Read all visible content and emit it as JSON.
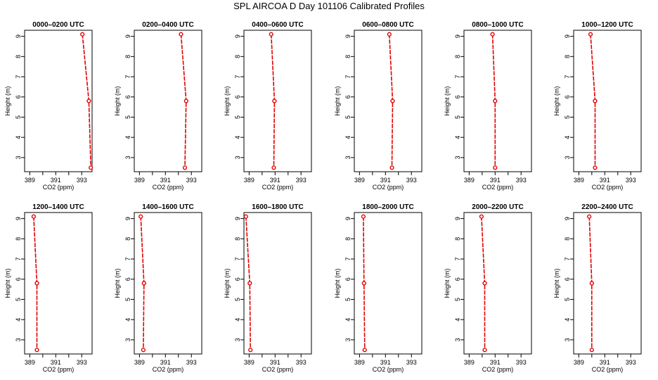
{
  "title": "SPL AIRCOA D  Day 101106  Calibrated Profiles",
  "style": {
    "line_color": "#e00000",
    "axis_color": "#000000"
  },
  "chart_data": [
    {
      "type": "line",
      "title": "0000–0200 UTC",
      "xlabel": "CO2 (ppm)",
      "ylabel": "Height (m)",
      "xlim": [
        388.6,
        393.8
      ],
      "ylim": [
        2.3,
        9.3
      ],
      "xticks": [
        389,
        391,
        393
      ],
      "yticks": [
        3,
        4,
        5,
        6,
        7,
        8,
        9
      ],
      "x": [
        393.05,
        393.55,
        393.7
      ],
      "y": [
        9.1,
        5.8,
        2.5
      ]
    },
    {
      "type": "line",
      "title": "0200–0400 UTC",
      "xlabel": "CO2 (ppm)",
      "ylabel": "Height (m)",
      "xlim": [
        388.6,
        393.8
      ],
      "ylim": [
        2.3,
        9.3
      ],
      "xticks": [
        389,
        391,
        393
      ],
      "yticks": [
        3,
        4,
        5,
        6,
        7,
        8,
        9
      ],
      "x": [
        392.2,
        392.6,
        392.5
      ],
      "y": [
        9.1,
        5.8,
        2.5
      ]
    },
    {
      "type": "line",
      "title": "0400–0600 UTC",
      "xlabel": "CO2 (ppm)",
      "ylabel": "Height (m)",
      "xlim": [
        388.6,
        393.8
      ],
      "ylim": [
        2.3,
        9.3
      ],
      "xticks": [
        389,
        391,
        393
      ],
      "yticks": [
        3,
        4,
        5,
        6,
        7,
        8,
        9
      ],
      "x": [
        390.7,
        390.95,
        390.9
      ],
      "y": [
        9.1,
        5.8,
        2.5
      ]
    },
    {
      "type": "line",
      "title": "0600–0800 UTC",
      "xlabel": "CO2 (ppm)",
      "ylabel": "Height (m)",
      "xlim": [
        388.6,
        393.8
      ],
      "ylim": [
        2.3,
        9.3
      ],
      "xticks": [
        389,
        391,
        393
      ],
      "yticks": [
        3,
        4,
        5,
        6,
        7,
        8,
        9
      ],
      "x": [
        391.3,
        391.55,
        391.5
      ],
      "y": [
        9.1,
        5.8,
        2.5
      ]
    },
    {
      "type": "line",
      "title": "0800–1000 UTC",
      "xlabel": "CO2 (ppm)",
      "ylabel": "Height (m)",
      "xlim": [
        388.6,
        393.8
      ],
      "ylim": [
        2.3,
        9.3
      ],
      "xticks": [
        389,
        391,
        393
      ],
      "yticks": [
        3,
        4,
        5,
        6,
        7,
        8,
        9
      ],
      "x": [
        390.8,
        391.0,
        391.0
      ],
      "y": [
        9.1,
        5.8,
        2.5
      ]
    },
    {
      "type": "line",
      "title": "1000–1200 UTC",
      "xlabel": "CO2 (ppm)",
      "ylabel": "Height (m)",
      "xlim": [
        388.6,
        393.8
      ],
      "ylim": [
        2.3,
        9.3
      ],
      "xticks": [
        389,
        391,
        393
      ],
      "yticks": [
        3,
        4,
        5,
        6,
        7,
        8,
        9
      ],
      "x": [
        389.9,
        390.25,
        390.25
      ],
      "y": [
        9.1,
        5.8,
        2.5
      ]
    },
    {
      "type": "line",
      "title": "1200–1400 UTC",
      "xlabel": "CO2 (ppm)",
      "ylabel": "Height (m)",
      "xlim": [
        388.6,
        393.8
      ],
      "ylim": [
        2.3,
        9.3
      ],
      "xticks": [
        389,
        391,
        393
      ],
      "yticks": [
        3,
        4,
        5,
        6,
        7,
        8,
        9
      ],
      "x": [
        389.3,
        389.55,
        389.55
      ],
      "y": [
        9.1,
        5.8,
        2.5
      ]
    },
    {
      "type": "line",
      "title": "1400–1600 UTC",
      "xlabel": "CO2 (ppm)",
      "ylabel": "Height (m)",
      "xlim": [
        388.6,
        393.8
      ],
      "ylim": [
        2.3,
        9.3
      ],
      "xticks": [
        389,
        391,
        393
      ],
      "yticks": [
        3,
        4,
        5,
        6,
        7,
        8,
        9
      ],
      "x": [
        389.1,
        389.35,
        389.3
      ],
      "y": [
        9.1,
        5.8,
        2.5
      ]
    },
    {
      "type": "line",
      "title": "1600–1800 UTC",
      "xlabel": "CO2 (ppm)",
      "ylabel": "Height (m)",
      "xlim": [
        388.6,
        393.8
      ],
      "ylim": [
        2.3,
        9.3
      ],
      "xticks": [
        389,
        391,
        393
      ],
      "yticks": [
        3,
        4,
        5,
        6,
        7,
        8,
        9
      ],
      "x": [
        388.75,
        389.05,
        389.1
      ],
      "y": [
        9.1,
        5.8,
        2.5
      ]
    },
    {
      "type": "line",
      "title": "1800–2000 UTC",
      "xlabel": "CO2 (ppm)",
      "ylabel": "Height (m)",
      "xlim": [
        388.6,
        393.8
      ],
      "ylim": [
        2.3,
        9.3
      ],
      "xticks": [
        389,
        391,
        393
      ],
      "yticks": [
        3,
        4,
        5,
        6,
        7,
        8,
        9
      ],
      "x": [
        389.3,
        389.35,
        389.4
      ],
      "y": [
        9.1,
        5.8,
        2.5
      ]
    },
    {
      "type": "line",
      "title": "2000–2200 UTC",
      "xlabel": "CO2 (ppm)",
      "ylabel": "Height (m)",
      "xlim": [
        388.6,
        393.8
      ],
      "ylim": [
        2.3,
        9.3
      ],
      "xticks": [
        389,
        391,
        393
      ],
      "yticks": [
        3,
        4,
        5,
        6,
        7,
        8,
        9
      ],
      "x": [
        389.95,
        390.2,
        390.2
      ],
      "y": [
        9.1,
        5.8,
        2.5
      ]
    },
    {
      "type": "line",
      "title": "2200–2400 UTC",
      "xlabel": "CO2 (ppm)",
      "ylabel": "Height (m)",
      "xlim": [
        388.6,
        393.8
      ],
      "ylim": [
        2.3,
        9.3
      ],
      "xticks": [
        389,
        391,
        393
      ],
      "yticks": [
        3,
        4,
        5,
        6,
        7,
        8,
        9
      ],
      "x": [
        389.8,
        390.0,
        390.0
      ],
      "y": [
        9.1,
        5.8,
        2.5
      ]
    }
  ]
}
